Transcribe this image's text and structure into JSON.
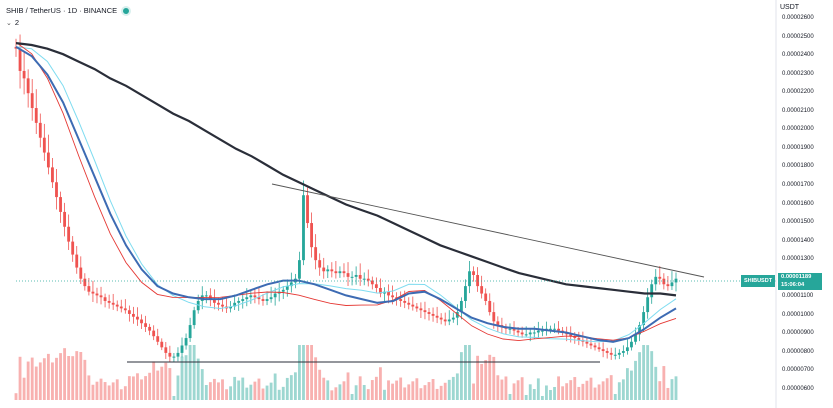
{
  "header": {
    "symbol": "SHIB",
    "separator": "/",
    "quote": "TetherUS",
    "interval": "1D",
    "exchange": "BINANCE",
    "title": "SHIB / TetherUS · 1D · BINANCE",
    "live_color": "#26a69a"
  },
  "indicators": {
    "collapse_icon": "chevron-down-icon",
    "count": "2"
  },
  "price_axis": {
    "unit": "USDT",
    "ticks": [
      "0.00002600",
      "0.00002500",
      "0.00002400",
      "0.00002300",
      "0.00002200",
      "0.00002100",
      "0.00002000",
      "0.00001900",
      "0.00001800",
      "0.00001700",
      "0.00001600",
      "0.00001500",
      "0.00001400",
      "0.00001300",
      "0.00001200",
      "0.00001100",
      "0.00001000",
      "0.00000900",
      "0.00000800",
      "0.00000700",
      "0.00000600"
    ]
  },
  "last_price": {
    "label": "SHIBUSDT",
    "value": "0.00001189",
    "countdown": "15:06:04",
    "color": "#26a69a"
  },
  "colors": {
    "up": "#26a69a",
    "down": "#ef5350",
    "ma_long": "#2a2e39",
    "ma_mid": "#3d6bb3",
    "ma_light": "#7fdcf0",
    "ma_red": "#e53935"
  },
  "chart_data": {
    "type": "candlestick",
    "ylim": [
      5.8e-06,
      2.65e-05
    ],
    "close": [
      2.44e-05,
      2.32e-05,
      2.28e-05,
      2.2e-05,
      2.12e-05,
      2.04e-05,
      1.96e-05,
      1.88e-05,
      1.8e-05,
      1.72e-05,
      1.64e-05,
      1.56e-05,
      1.48e-05,
      1.4e-05,
      1.33e-05,
      1.26e-05,
      1.2e-05,
      1.16e-05,
      1.13e-05,
      1.12e-05,
      1.11e-05,
      1.1e-05,
      1.08e-05,
      1.07e-05,
      1.06e-05,
      1.05e-05,
      1.04e-05,
      1.03e-05,
      1.01e-05,
      9.95e-06,
      9.8e-06,
      9.6e-06,
      9.4e-06,
      9.2e-06,
      8.9e-06,
      8.6e-06,
      8.3e-06,
      8e-06,
      7.8e-06,
      7.8e-06,
      8e-06,
      8.4e-06,
      8.8e-06,
      9.5e-06,
      1.03e-05,
      1.08e-05,
      1.11e-05,
      1.11e-05,
      1.09e-05,
      1.07e-05,
      1.06e-05,
      1.05e-05,
      1.04e-05,
      1.05e-05,
      1.07e-05,
      1.08e-05,
      1.09e-05,
      1.1e-05,
      1.11e-05,
      1.1e-05,
      1.09e-05,
      1.08e-05,
      1.09e-05,
      1.1e-05,
      1.12e-05,
      1.13e-05,
      1.14e-05,
      1.16e-05,
      1.18e-05,
      1.2e-05,
      1.3e-05,
      1.65e-05,
      1.5e-05,
      1.37e-05,
      1.3e-05,
      1.26e-05,
      1.24e-05,
      1.25e-05,
      1.24e-05,
      1.23e-05,
      1.24e-05,
      1.23e-05,
      1.21e-05,
      1.21e-05,
      1.22e-05,
      1.2e-05,
      1.2e-05,
      1.19e-05,
      1.17e-05,
      1.15e-05,
      1.12e-05,
      1.13e-05,
      1.11e-05,
      1.1e-05,
      1.09e-05,
      1.08e-05,
      1.07e-05,
      1.06e-05,
      1.05e-05,
      1.04e-05,
      1.03e-05,
      1.02e-05,
      1.01e-05,
      1e-05,
      9.9e-06,
      9.8e-06,
      9.7e-06,
      9.8e-06,
      9.9e-06,
      1.02e-05,
      1.08e-05,
      1.16e-05,
      1.24e-05,
      1.22e-05,
      1.16e-05,
      1.12e-05,
      1.08e-05,
      1.02e-05,
      9.7e-06,
      9.5e-06,
      9.4e-06,
      9.3e-06,
      9.3e-06,
      9.2e-06,
      9.1e-06,
      9e-06,
      9e-06,
      9.1e-06,
      9.1e-06,
      9.2e-06,
      9.2e-06,
      9.3e-06,
      9.3e-06,
      9.3e-06,
      9.2e-06,
      9.1e-06,
      9e-06,
      8.9e-06,
      8.8e-06,
      8.7e-06,
      8.6e-06,
      8.5e-06,
      8.4e-06,
      8.3e-06,
      8.2e-06,
      8.1e-06,
      8e-06,
      7.9e-06,
      7.9e-06,
      8e-06,
      8.1e-06,
      8.3e-06,
      8.6e-06,
      9e-06,
      9.5e-06,
      1.02e-05,
      1.1e-05,
      1.17e-05,
      1.21e-05,
      1.2e-05,
      1.17e-05,
      1.16e-05,
      1.18e-05,
      1.2e-05
    ],
    "series": [
      {
        "name": "",
        "kind": "long",
        "values": [
          2.47e-05,
          2.46e-05,
          2.44e-05,
          2.41e-05,
          2.37e-05,
          2.33e-05,
          2.28e-05,
          2.24e-05,
          2.19e-05,
          2.14e-05,
          2.09e-05,
          2.05e-05,
          2e-05,
          1.95e-05,
          1.9e-05,
          1.86e-05,
          1.81e-05,
          1.76e-05,
          1.72e-05,
          1.68e-05,
          1.64e-05,
          1.6e-05,
          1.57e-05,
          1.54e-05,
          1.5e-05,
          1.46e-05,
          1.42e-05,
          1.38e-05,
          1.35e-05,
          1.32e-05,
          1.29e-05,
          1.26e-05,
          1.23e-05,
          1.21e-05,
          1.19e-05,
          1.17e-05,
          1.16e-05,
          1.15e-05,
          1.14e-05,
          1.13e-05,
          1.12e-05,
          1.12e-05,
          1.11e-05
        ]
      },
      {
        "name": "",
        "kind": "mid",
        "values": [
          2.45e-05,
          2.4e-05,
          2.3e-05,
          2.15e-05,
          1.95e-05,
          1.75e-05,
          1.55e-05,
          1.38e-05,
          1.25e-05,
          1.16e-05,
          1.12e-05,
          1.1e-05,
          1.09e-05,
          1.09e-05,
          1.11e-05,
          1.14e-05,
          1.17e-05,
          1.19e-05,
          1.19e-05,
          1.17e-05,
          1.14e-05,
          1.11e-05,
          1.09e-05,
          1.07e-05,
          1.08e-05,
          1.12e-05,
          1.13e-05,
          1.09e-05,
          1.04e-05,
          9.9e-06,
          9.6e-06,
          9.4e-06,
          9.3e-06,
          9.3e-06,
          9.2e-06,
          9.1e-06,
          8.9e-06,
          8.7e-06,
          8.6e-06,
          8.8e-06,
          9.3e-06,
          9.9e-06,
          1.04e-05
        ]
      }
    ]
  }
}
